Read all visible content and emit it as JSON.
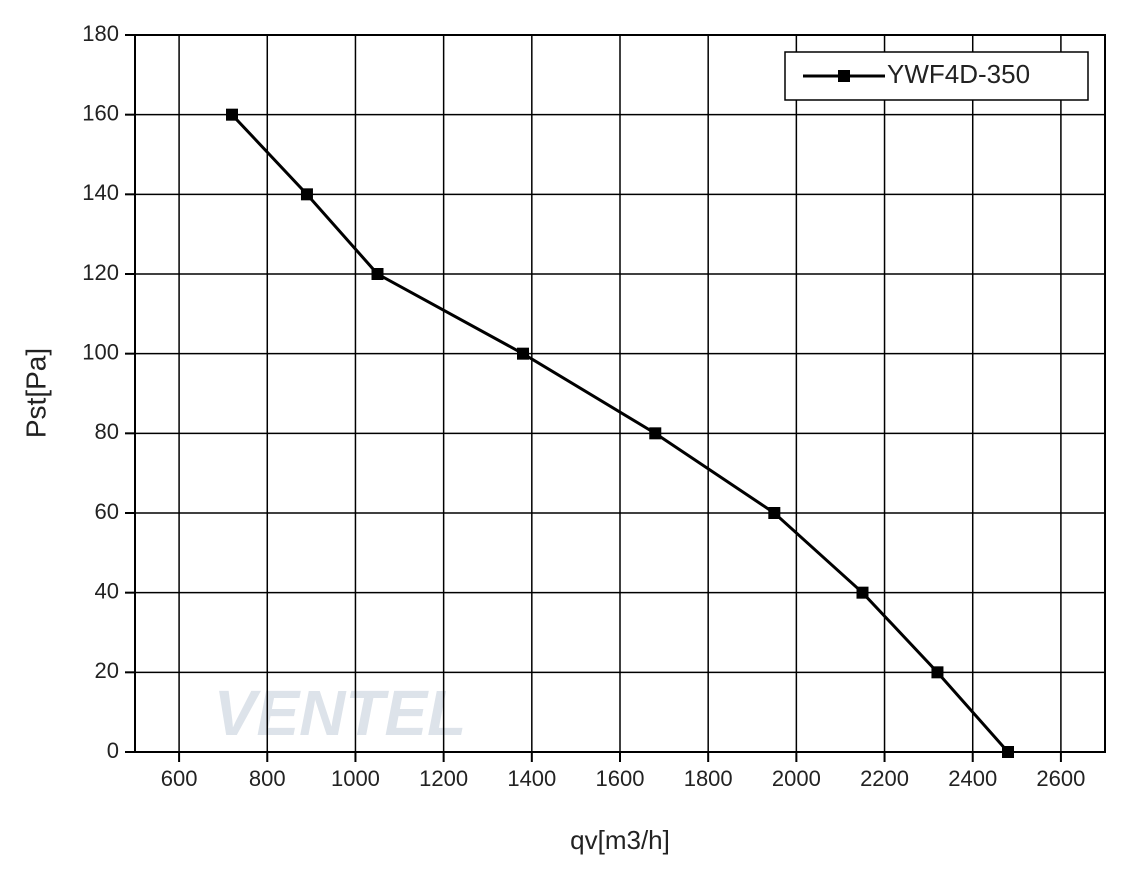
{
  "chart_data": {
    "type": "line",
    "xlabel": "qv[m3/h]",
    "ylabel": "Pst[Pa]",
    "watermark": "VENTEL",
    "x": [
      720,
      890,
      1050,
      1380,
      1680,
      1950,
      2150,
      2320,
      2480
    ],
    "series": [
      {
        "name": "YWF4D-350",
        "color": "#000000",
        "values": [
          160,
          140,
          120,
          100,
          80,
          60,
          40,
          20,
          0
        ]
      }
    ],
    "xlim": [
      500,
      2700
    ],
    "xticks": [
      600,
      800,
      1000,
      1200,
      1400,
      1600,
      1800,
      2000,
      2200,
      2400,
      2600
    ],
    "ylim": [
      0,
      180
    ],
    "yticks": [
      0,
      20,
      40,
      60,
      80,
      100,
      120,
      140,
      160,
      180
    ],
    "grid": true,
    "legend": "upper right"
  }
}
